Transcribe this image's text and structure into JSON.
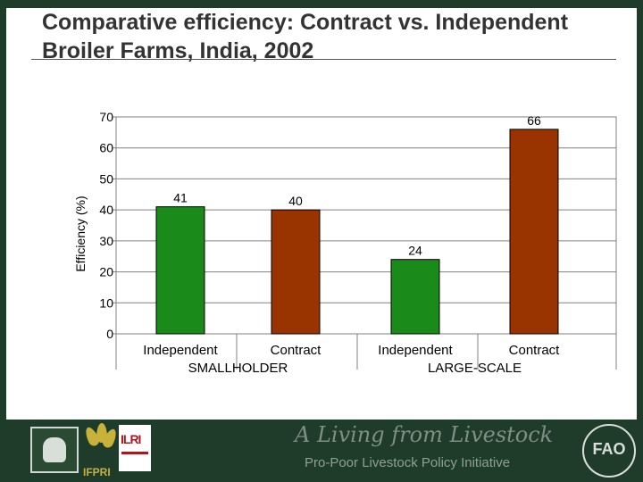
{
  "title": "Comparative efficiency: Contract vs. Independent Broiler Farms, India, 2002",
  "chart_data": {
    "type": "bar",
    "ylabel": "Efficiency (%)",
    "ylim": [
      0,
      70
    ],
    "yticks": [
      0,
      10,
      20,
      30,
      40,
      50,
      60,
      70
    ],
    "grid": true,
    "groups": [
      {
        "label": "SMALLHOLDER",
        "bars": [
          {
            "category": "Independent",
            "value": 41,
            "color": "#1a8a1a"
          },
          {
            "category": "Contract",
            "value": 40,
            "color": "#993300"
          }
        ]
      },
      {
        "label": "LARGE-SCALE",
        "bars": [
          {
            "category": "Independent",
            "value": 24,
            "color": "#1a8a1a"
          },
          {
            "category": "Contract",
            "value": 66,
            "color": "#993300"
          }
        ]
      }
    ]
  },
  "footer": {
    "tagline": "A Living from Livestock",
    "subtagline": "Pro-Poor Livestock Policy Initiative",
    "logos": [
      {
        "name": "livestock-figure-logo"
      },
      {
        "name": "ifpri-logo",
        "text": "IFPRI"
      },
      {
        "name": "ilri-logo",
        "text": "ILRI"
      },
      {
        "name": "fao-logo",
        "text": "FAO"
      }
    ]
  }
}
